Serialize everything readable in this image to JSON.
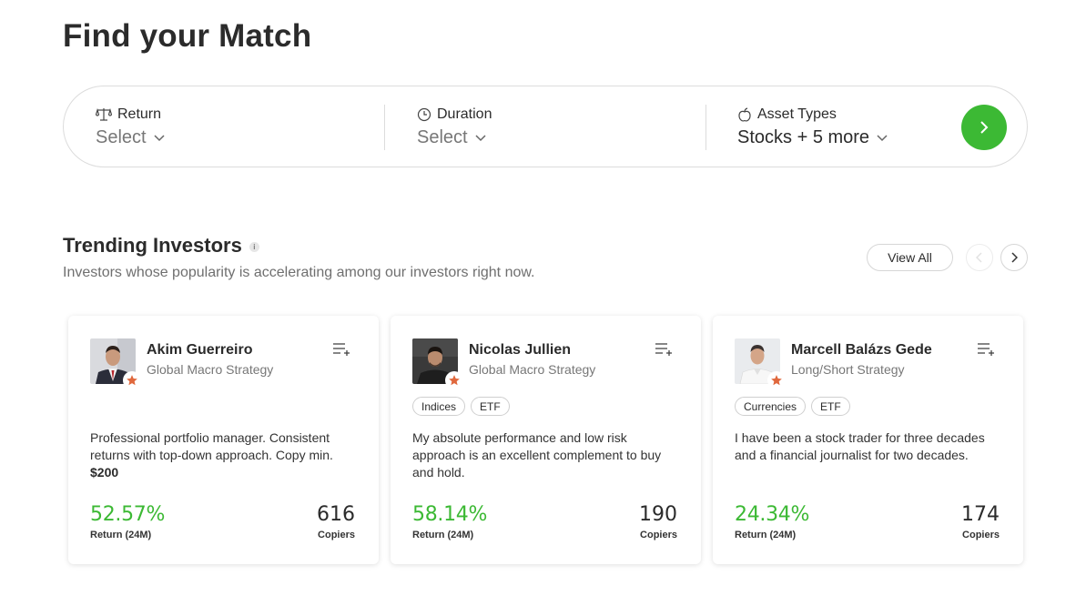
{
  "page": {
    "title": "Find your Match"
  },
  "filters": {
    "return": {
      "label": "Return",
      "value": "Select"
    },
    "duration": {
      "label": "Duration",
      "value": "Select"
    },
    "asset_types": {
      "label": "Asset Types",
      "value": "Stocks + 5 more"
    },
    "go_icon": "chevron-right-icon"
  },
  "trending": {
    "title": "Trending Investors",
    "info_icon": "i",
    "subtitle": "Investors whose popularity is accelerating among our investors right now.",
    "view_all": "View All"
  },
  "investors": [
    {
      "name": "Akim Guerreiro",
      "strategy": "Global Macro Strategy",
      "tags": [],
      "bio": "Professional portfolio manager. Consistent returns with top-down approach. Copy min.",
      "bio_bold": "$200",
      "return_value": "52.57%",
      "return_label": "Return (24M)",
      "copiers_value": "616",
      "copiers_label": "Copiers"
    },
    {
      "name": "Nicolas Jullien",
      "strategy": "Global Macro Strategy",
      "tags": [
        "Indices",
        "ETF"
      ],
      "bio": "My absolute performance and low risk approach is an excellent complement to buy and hold.",
      "bio_bold": "",
      "return_value": "58.14%",
      "return_label": "Return (24M)",
      "copiers_value": "190",
      "copiers_label": "Copiers"
    },
    {
      "name": "Marcell Balázs Gede",
      "strategy": "Long/Short Strategy",
      "tags": [
        "Currencies",
        "ETF"
      ],
      "bio": "I have been a stock trader for three decades and a financial journalist for two decades.",
      "bio_bold": "",
      "return_value": "24.34%",
      "return_label": "Return (24M)",
      "copiers_value": "174",
      "copiers_label": "Copiers"
    }
  ],
  "colors": {
    "accent_green": "#3cb934",
    "star_orange": "#e0683d"
  }
}
